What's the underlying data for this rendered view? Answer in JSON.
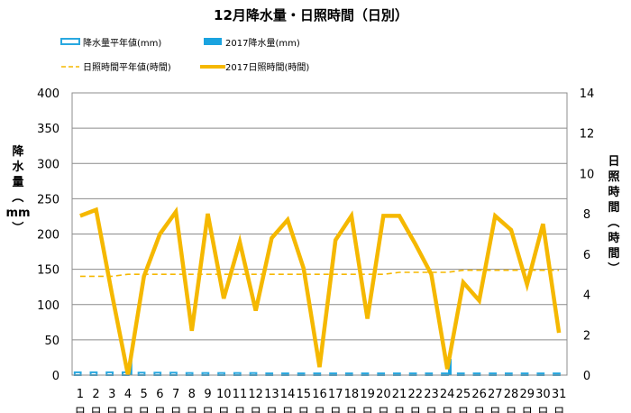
{
  "chart_data": {
    "type": "bar",
    "title": "12月降水量・日照時間（日別）",
    "categories": [
      "1",
      "2",
      "3",
      "4",
      "5",
      "6",
      "7",
      "8",
      "9",
      "10",
      "11",
      "12",
      "13",
      "14",
      "15",
      "16",
      "17",
      "18",
      "19",
      "20",
      "21",
      "22",
      "23",
      "24",
      "25",
      "26",
      "27",
      "28",
      "29",
      "30",
      "31"
    ],
    "day_unit": "日",
    "ylabel_left": "降水量（mm）",
    "ylabel_right": "日照時間（時間）",
    "ylim_left": [
      0,
      400
    ],
    "yticks_left": [
      0,
      50,
      100,
      150,
      200,
      250,
      300,
      350,
      400
    ],
    "ylim_right": [
      0,
      14
    ],
    "yticks_right": [
      0,
      2,
      4,
      6,
      8,
      10,
      12,
      14
    ],
    "grid": "horizontal",
    "legend_position": "top",
    "series": [
      {
        "name": "降水量平年値(mm)",
        "type": "bar",
        "axis": "left",
        "style": "outline",
        "color": "#29a8e0",
        "values": [
          4,
          4,
          4,
          4,
          3.5,
          3.5,
          3.5,
          3,
          3,
          3,
          3,
          3,
          2.5,
          2.5,
          2.5,
          2.5,
          2.5,
          2.5,
          2.5,
          2.5,
          2.5,
          2.5,
          2.5,
          2.5,
          2.5,
          2.5,
          2.5,
          2.5,
          2.5,
          2.5,
          2.5
        ]
      },
      {
        "name": "2017降水量(mm)",
        "type": "bar",
        "axis": "left",
        "style": "solid",
        "color": "#1aa3df",
        "values": [
          0,
          0,
          0,
          23,
          0,
          0,
          0,
          0,
          0,
          0,
          0,
          0,
          0,
          0,
          0,
          0,
          0,
          0,
          0,
          0,
          0,
          0,
          0,
          23,
          0,
          0,
          0,
          0,
          0,
          0,
          0
        ]
      },
      {
        "name": "日照時間平年値(時間)",
        "type": "line",
        "axis": "right",
        "style": "dashed",
        "color": "#f5b800",
        "values": [
          4.9,
          4.9,
          4.9,
          5.0,
          5.0,
          5.0,
          5.0,
          5.0,
          5.0,
          5.0,
          5.0,
          5.0,
          5.0,
          5.0,
          5.0,
          5.0,
          5.0,
          5.0,
          5.0,
          5.0,
          5.1,
          5.1,
          5.1,
          5.1,
          5.2,
          5.2,
          5.2,
          5.2,
          5.2,
          5.2,
          5.2
        ]
      },
      {
        "name": "2017日照時間(時間)",
        "type": "line",
        "axis": "right",
        "style": "solid",
        "color": "#f5b800",
        "values": [
          7.9,
          8.2,
          4.0,
          0.0,
          4.9,
          7.0,
          8.1,
          2.2,
          8.0,
          3.8,
          6.6,
          3.2,
          6.8,
          7.7,
          5.3,
          0.4,
          6.7,
          7.9,
          2.8,
          7.9,
          7.9,
          6.5,
          5.0,
          0.3,
          4.6,
          3.7,
          7.9,
          7.2,
          4.5,
          7.5,
          2.1
        ]
      }
    ]
  }
}
